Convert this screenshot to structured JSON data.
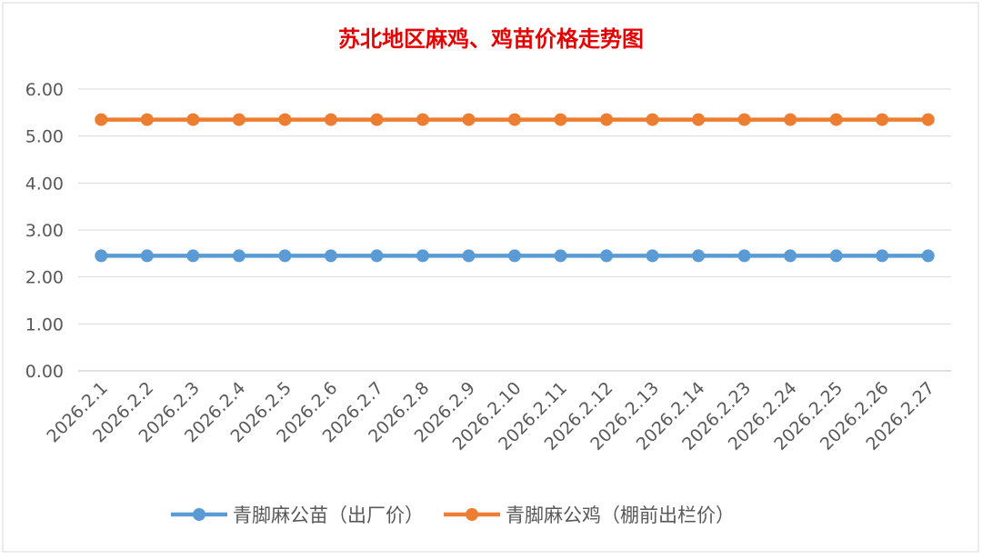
{
  "chart_data": {
    "type": "line",
    "title": "苏北地区麻鸡、鸡苗价格走势图",
    "title_color": "#e60000",
    "xlabel": "",
    "ylabel": "",
    "categories": [
      "2026.2.1",
      "2026.2.2",
      "2026.2.3",
      "2026.2.4",
      "2026.2.5",
      "2026.2.6",
      "2026.2.7",
      "2026.2.8",
      "2026.2.9",
      "2026.2.10",
      "2026.2.11",
      "2026.2.12",
      "2026.2.13",
      "2026.2.14",
      "2026.2.23",
      "2026.2.24",
      "2026.2.25",
      "2026.2.26",
      "2026.2.27"
    ],
    "y_ticks": [
      "0.00",
      "1.00",
      "2.00",
      "3.00",
      "4.00",
      "5.00",
      "6.00"
    ],
    "ylim": [
      0,
      6
    ],
    "grid": true,
    "legend_position": "bottom",
    "series": [
      {
        "name": "青脚麻公苗（出厂价）",
        "color": "#5b9bd5",
        "values": [
          2.45,
          2.45,
          2.45,
          2.45,
          2.45,
          2.45,
          2.45,
          2.45,
          2.45,
          2.45,
          2.45,
          2.45,
          2.45,
          2.45,
          2.45,
          2.45,
          2.45,
          2.45,
          2.45
        ]
      },
      {
        "name": "青脚麻公鸡（棚前出栏价）",
        "color": "#ed7d31",
        "values": [
          5.35,
          5.35,
          5.35,
          5.35,
          5.35,
          5.35,
          5.35,
          5.35,
          5.35,
          5.35,
          5.35,
          5.35,
          5.35,
          5.35,
          5.35,
          5.35,
          5.35,
          5.35,
          5.35
        ]
      }
    ]
  }
}
